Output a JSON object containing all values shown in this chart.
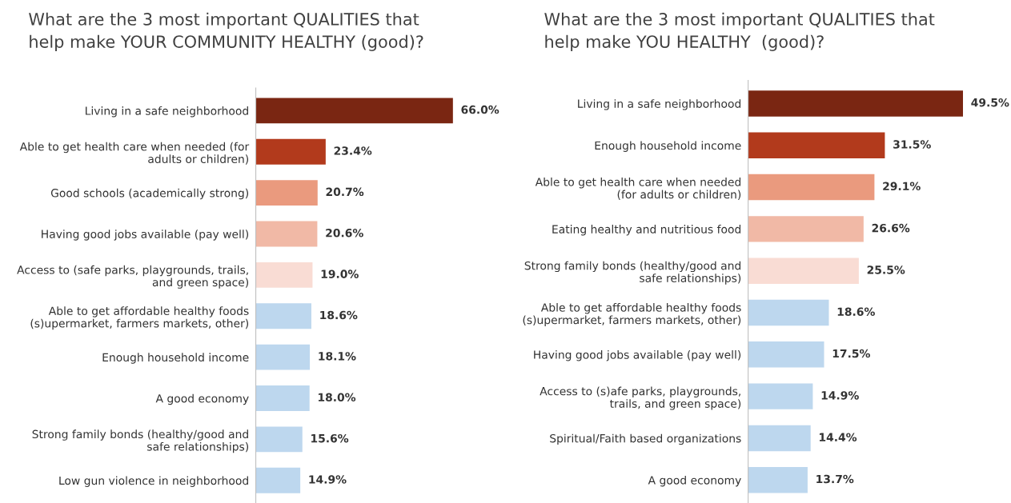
{
  "chart_data": [
    {
      "type": "bar",
      "orientation": "horizontal",
      "title": "What are the 3 most important QUALITIES that\nhelp make YOUR COMMUNITY HEALTHY (good)?",
      "legend": false,
      "grid": false,
      "categories": [
        "Living in a safe neighborhood",
        "Able to get health care when needed (for\nadults or children)",
        "Good schools (academically strong)",
        "Having good jobs available (pay well)",
        "Access to (safe parks, playgrounds, trails,\nand green space)",
        "Able to get affordable healthy foods\n(s)upermarket, farmers markets, other)",
        "Enough household income",
        "A good economy",
        "Strong family bonds (healthy/good and\nsafe relationships)",
        "Low gun violence in neighborhood"
      ],
      "values": [
        66.0,
        23.4,
        20.7,
        20.6,
        19.0,
        18.6,
        18.1,
        18.0,
        15.6,
        14.9
      ],
      "value_labels": [
        "66.0%",
        "23.4%",
        "20.7%",
        "20.6%",
        "19.0%",
        "18.6%",
        "18.1%",
        "18.0%",
        "15.6%",
        "14.9%"
      ],
      "colors": [
        "#7a2612",
        "#b23a1c",
        "#ea9a7e",
        "#f1b9a6",
        "#f9dcd4",
        "#bdd7ee",
        "#bdd7ee",
        "#bdd7ee",
        "#bdd7ee",
        "#bdd7ee"
      ]
    },
    {
      "type": "bar",
      "orientation": "horizontal",
      "title": "What are the 3 most important QUALITIES that\nhelp make YOU HEALTHY  (good)?",
      "legend": false,
      "grid": false,
      "categories": [
        "Living in a safe neighborhood",
        "Enough household income",
        "Able to get health care when needed\n(for adults or children)",
        "Eating healthy and nutritious food",
        "Strong family bonds (healthy/good and\nsafe relationships)",
        "Able to get affordable healthy foods\n(s)upermarket, farmers markets, other)",
        "Having good jobs available (pay well)",
        "Access to (s)afe parks, playgrounds,\ntrails, and green space)",
        "Spiritual/Faith based organizations",
        "A good economy"
      ],
      "values": [
        49.5,
        31.5,
        29.1,
        26.6,
        25.5,
        18.6,
        17.5,
        14.9,
        14.4,
        13.7
      ],
      "value_labels": [
        "49.5%",
        "31.5%",
        "29.1%",
        "26.6%",
        "25.5%",
        "18.6%",
        "17.5%",
        "14.9%",
        "14.4%",
        "13.7%"
      ],
      "colors": [
        "#7a2612",
        "#b23a1c",
        "#ea9a7e",
        "#f1b9a6",
        "#f9dcd4",
        "#bdd7ee",
        "#bdd7ee",
        "#bdd7ee",
        "#bdd7ee",
        "#bdd7ee"
      ]
    }
  ]
}
